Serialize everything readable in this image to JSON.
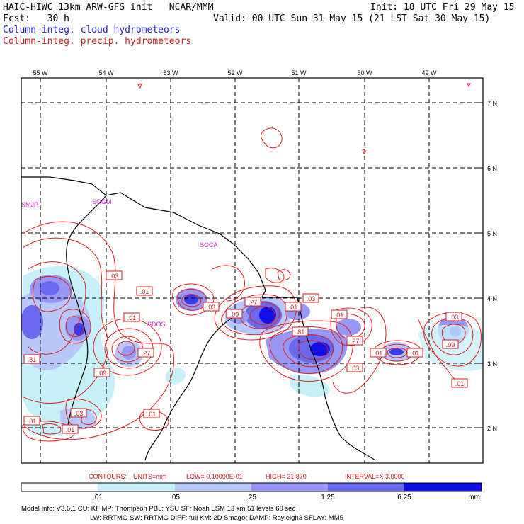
{
  "header": {
    "title": "HAIC-HIWC 13km ARW-GFS init   NCAR/MMM",
    "init": "Init: 18 UTC Fri 29 May 15",
    "fcst": "Fcst:   30 h",
    "valid": "Valid: 00 UTC Sun 31 May 15 (21 LST Sat 30 May 15)",
    "field_cloud": "Column-integ. cloud hydrometeors",
    "field_precip": "Column-integ. precip. hydrometeors"
  },
  "colors": {
    "cloud_text": "#1f1fd6",
    "precip_text": "#d01c1c",
    "contour": "#e02020",
    "station": "#cc22cc",
    "fill_levels": [
      "#ffffff",
      "#c8f0f8",
      "#b8c8fa",
      "#9898f4",
      "#6a6aee",
      "#3a3ae8",
      "#1010e6"
    ]
  },
  "map": {
    "lon_labels": [
      "55 W",
      "54 W",
      "53 W",
      "52 W",
      "51 W",
      "50 W",
      "49 W"
    ],
    "lat_labels": [
      "7 N",
      "6 N",
      "5 N",
      "4 N",
      "3 N",
      "2 N"
    ],
    "stations": [
      "SMJP",
      "SOGM",
      "SOCA",
      "SDOS"
    ],
    "contour_labels": [
      ".03",
      ".01",
      ".01",
      ".27",
      ".81",
      ".09",
      ".03",
      ".01",
      ".01",
      ".01",
      ".03",
      ".09",
      ".27",
      ".01",
      ".03",
      ".81",
      ".01",
      ".27",
      ".03",
      ".01",
      ".01",
      ".03",
      ".09",
      ".01"
    ]
  },
  "contour_info": {
    "label": "CONTOURS:",
    "units": "UNITS=mm",
    "low": "LOW= 0.10000E-01",
    "high": "HIGH=  21.870",
    "interval": "INTERVAL=X  3.0000"
  },
  "colorbar": {
    "ticks": [
      ".01",
      ".05",
      ".25",
      "1.25",
      "6.25"
    ],
    "unit": "mm"
  },
  "model_info": {
    "line1": "Model Info: V3.6.1    CU: KF      MP: Thompson    PBL: YSU      SF: Noah LSM     13 km   51 levels   60 sec",
    "line2": "LW: RRTMG   SW: RRTMG  DIFF: full   KM: 2D Smagor DAMP: Rayleigh3  SFLAY: MM5"
  }
}
